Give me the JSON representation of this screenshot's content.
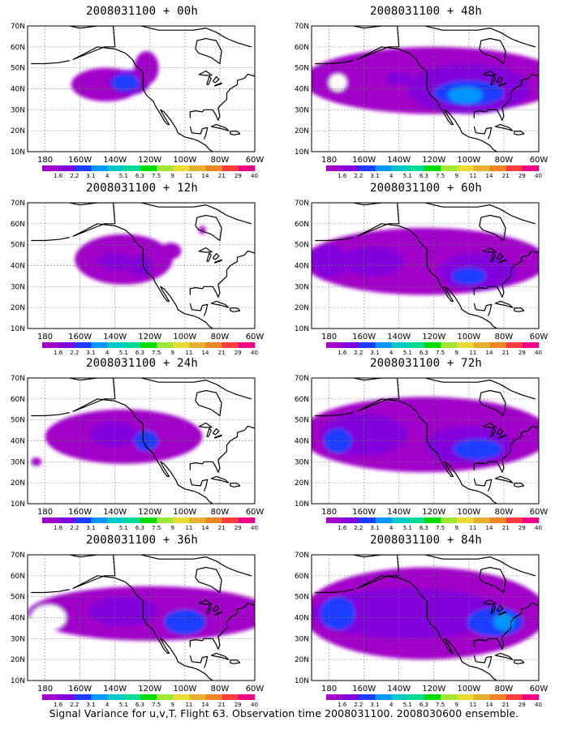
{
  "footer": "Signal Variance for u,v,T. Flight 63. Observation time 2008031100. 2008030600 ensemble.",
  "colorbar": {
    "labels": [
      "1.6",
      "2.2",
      "3.1",
      "4",
      "5.1",
      "6.3",
      "7.5",
      "9",
      "11",
      "14",
      "21",
      "29",
      "40"
    ],
    "colors": [
      "#a000c8",
      "#8200dc",
      "#1e3cff",
      "#0096ff",
      "#00c8c8",
      "#00dc96",
      "#00dc00",
      "#a0e632",
      "#e6dc32",
      "#e6af2d",
      "#f08228",
      "#fa3c3c",
      "#f00082"
    ]
  },
  "chart_data": [
    {
      "type": "heatmap",
      "title": "2008031100 + 00h",
      "lead_hours": 0,
      "xticks": [
        "180",
        "160W",
        "140W",
        "120W",
        "100W",
        "80W",
        "60W"
      ],
      "yticks": [
        "10N",
        "20N",
        "30N",
        "40N",
        "50N",
        "60N",
        "70N"
      ],
      "xlim_lon": [
        -190,
        -60
      ],
      "ylim_lat": [
        10,
        70
      ],
      "blobs": [
        {
          "lon": -145,
          "lat": 42,
          "rlon": 20,
          "rlat": 8,
          "level": 0
        },
        {
          "lon": -132,
          "lat": 43,
          "rlon": 12,
          "rlat": 6,
          "level": 1
        },
        {
          "lon": -134,
          "lat": 43,
          "rlon": 8,
          "rlat": 4,
          "level": 2
        },
        {
          "lon": -122,
          "lat": 50,
          "rlon": 7,
          "rlat": 8,
          "level": 0
        }
      ]
    },
    {
      "type": "heatmap",
      "title": "2008031100 + 48h",
      "lead_hours": 48,
      "xticks": [
        "180",
        "160W",
        "140W",
        "120W",
        "100W",
        "80W",
        "60W"
      ],
      "yticks": [
        "10N",
        "20N",
        "30N",
        "40N",
        "50N",
        "60N",
        "70N"
      ],
      "xlim_lon": [
        -190,
        -60
      ],
      "ylim_lat": [
        10,
        70
      ],
      "blobs": [
        {
          "lon": -120,
          "lat": 44,
          "rlon": 75,
          "rlat": 16,
          "level": 0
        },
        {
          "lon": -100,
          "lat": 40,
          "rlon": 35,
          "rlat": 12,
          "level": 1
        },
        {
          "lon": -100,
          "lat": 38,
          "rlon": 20,
          "rlat": 6,
          "level": 2
        },
        {
          "lon": -140,
          "lat": 45,
          "rlon": 8,
          "rlat": 3,
          "level": 1
        },
        {
          "lon": -102,
          "lat": 37,
          "rlon": 10,
          "rlat": 4,
          "level": 3
        },
        {
          "lon": -175,
          "lat": 43,
          "rlon": 5,
          "rlat": 4,
          "level": -1
        }
      ]
    },
    {
      "type": "heatmap",
      "title": "2008031100 + 12h",
      "lead_hours": 12,
      "xticks": [
        "180",
        "160W",
        "140W",
        "120W",
        "100W",
        "80W",
        "60W"
      ],
      "yticks": [
        "10N",
        "20N",
        "30N",
        "40N",
        "50N",
        "60N",
        "70N"
      ],
      "xlim_lon": [
        -190,
        -60
      ],
      "ylim_lat": [
        10,
        70
      ],
      "blobs": [
        {
          "lon": -135,
          "lat": 43,
          "rlon": 28,
          "rlat": 12,
          "level": 0
        },
        {
          "lon": -140,
          "lat": 42,
          "rlon": 10,
          "rlat": 4,
          "level": 1
        },
        {
          "lon": -125,
          "lat": 40,
          "rlon": 7,
          "rlat": 5,
          "level": 1
        },
        {
          "lon": -108,
          "lat": 47,
          "rlon": 6,
          "rlat": 4,
          "level": 0
        },
        {
          "lon": -90,
          "lat": 57,
          "rlon": 2,
          "rlat": 2,
          "level": 0
        }
      ]
    },
    {
      "type": "heatmap",
      "title": "2008031100 + 60h",
      "lead_hours": 60,
      "xticks": [
        "180",
        "160W",
        "140W",
        "120W",
        "100W",
        "80W",
        "60W"
      ],
      "yticks": [
        "10N",
        "20N",
        "30N",
        "40N",
        "50N",
        "60N",
        "70N"
      ],
      "xlim_lon": [
        -190,
        -60
      ],
      "ylim_lat": [
        10,
        70
      ],
      "blobs": [
        {
          "lon": -125,
          "lat": 42,
          "rlon": 70,
          "rlat": 16,
          "level": 0
        },
        {
          "lon": -155,
          "lat": 42,
          "rlon": 18,
          "rlat": 7,
          "level": 1
        },
        {
          "lon": -95,
          "lat": 37,
          "rlon": 22,
          "rlat": 9,
          "level": 1
        },
        {
          "lon": -100,
          "lat": 35,
          "rlon": 10,
          "rlat": 4,
          "level": 2
        },
        {
          "lon": -180,
          "lat": 42,
          "rlon": 10,
          "rlat": 8,
          "level": 1
        }
      ]
    },
    {
      "type": "heatmap",
      "title": "2008031100 + 24h",
      "lead_hours": 24,
      "xticks": [
        "180",
        "160W",
        "140W",
        "120W",
        "100W",
        "80W",
        "60W"
      ],
      "yticks": [
        "10N",
        "20N",
        "30N",
        "40N",
        "50N",
        "60N",
        "70N"
      ],
      "xlim_lon": [
        -190,
        -60
      ],
      "ylim_lat": [
        10,
        70
      ],
      "blobs": [
        {
          "lon": -135,
          "lat": 42,
          "rlon": 45,
          "rlat": 13,
          "level": 0
        },
        {
          "lon": -140,
          "lat": 43,
          "rlon": 14,
          "rlat": 6,
          "level": 1
        },
        {
          "lon": -122,
          "lat": 40,
          "rlon": 7,
          "rlat": 5,
          "level": 2
        },
        {
          "lon": -185,
          "lat": 30,
          "rlon": 3,
          "rlat": 2,
          "level": 0
        }
      ]
    },
    {
      "type": "heatmap",
      "title": "2008031100 + 72h",
      "lead_hours": 72,
      "xticks": [
        "180",
        "160W",
        "140W",
        "120W",
        "100W",
        "80W",
        "60W"
      ],
      "yticks": [
        "10N",
        "20N",
        "30N",
        "40N",
        "50N",
        "60N",
        "70N"
      ],
      "xlim_lon": [
        -190,
        -60
      ],
      "ylim_lat": [
        10,
        70
      ],
      "blobs": [
        {
          "lon": -125,
          "lat": 43,
          "rlon": 72,
          "rlat": 18,
          "level": 0
        },
        {
          "lon": -160,
          "lat": 43,
          "rlon": 25,
          "rlat": 10,
          "level": 1
        },
        {
          "lon": -100,
          "lat": 38,
          "rlon": 25,
          "rlat": 9,
          "level": 1
        },
        {
          "lon": -95,
          "lat": 36,
          "rlon": 14,
          "rlat": 5,
          "level": 2
        },
        {
          "lon": -175,
          "lat": 40,
          "rlon": 8,
          "rlat": 6,
          "level": 2
        }
      ]
    },
    {
      "type": "heatmap",
      "title": "2008031100 + 36h",
      "lead_hours": 36,
      "xticks": [
        "180",
        "160W",
        "140W",
        "120W",
        "100W",
        "80W",
        "60W"
      ],
      "yticks": [
        "10N",
        "20N",
        "30N",
        "40N",
        "50N",
        "60N",
        "70N"
      ],
      "xlim_lon": [
        -190,
        -60
      ],
      "ylim_lat": [
        10,
        70
      ],
      "blobs": [
        {
          "lon": -120,
          "lat": 42,
          "rlon": 70,
          "rlat": 13,
          "level": 0
        },
        {
          "lon": -135,
          "lat": 43,
          "rlon": 20,
          "rlat": 7,
          "level": 1
        },
        {
          "lon": -100,
          "lat": 38,
          "rlon": 12,
          "rlat": 6,
          "level": 2
        },
        {
          "lon": -178,
          "lat": 40,
          "rlon": 10,
          "rlat": 6,
          "level": -1
        }
      ]
    },
    {
      "type": "heatmap",
      "title": "2008031100 + 84h",
      "lead_hours": 84,
      "xticks": [
        "180",
        "160W",
        "140W",
        "120W",
        "100W",
        "80W",
        "60W"
      ],
      "yticks": [
        "10N",
        "20N",
        "30N",
        "40N",
        "50N",
        "60N",
        "70N"
      ],
      "xlim_lon": [
        -190,
        -60
      ],
      "ylim_lat": [
        10,
        70
      ],
      "blobs": [
        {
          "lon": -125,
          "lat": 42,
          "rlon": 70,
          "rlat": 22,
          "level": 0
        },
        {
          "lon": -135,
          "lat": 42,
          "rlon": 55,
          "rlat": 12,
          "level": 1
        },
        {
          "lon": -175,
          "lat": 42,
          "rlon": 10,
          "rlat": 8,
          "level": 2
        },
        {
          "lon": -85,
          "lat": 38,
          "rlon": 16,
          "rlat": 7,
          "level": 2
        },
        {
          "lon": -80,
          "lat": 38,
          "rlon": 6,
          "rlat": 4,
          "level": 3
        }
      ]
    }
  ]
}
